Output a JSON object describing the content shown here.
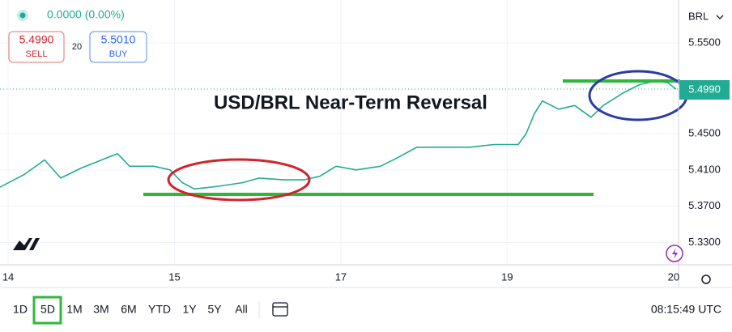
{
  "header": {
    "change": "0.0000 (0.00%)",
    "sell_price": "5.4990",
    "sell": "SELL",
    "spread": "20",
    "buy_price": "5.5010",
    "buy": "BUY",
    "currency": "BRL"
  },
  "chart_data": {
    "type": "line",
    "title": "USD/BRL Near-Term Reversal",
    "color": "#22ab94",
    "x": [
      -0.049,
      0.097,
      0.219,
      0.316,
      0.438,
      0.535,
      0.657,
      0.73,
      0.876,
      0.973,
      1.046,
      1.119,
      1.265,
      1.411,
      1.509,
      1.655,
      1.776,
      1.873,
      1.971,
      2.092,
      2.238,
      2.336,
      2.457,
      2.603,
      2.774,
      2.92,
      3.066,
      3.114,
      3.163,
      3.212,
      3.309,
      3.406,
      3.504,
      3.577,
      3.698,
      3.796,
      3.893,
      3.966,
      4.015
    ],
    "values": [
      5.391,
      5.405,
      5.421,
      5.401,
      5.412,
      5.419,
      5.428,
      5.414,
      5.414,
      5.41,
      5.396,
      5.389,
      5.392,
      5.396,
      5.401,
      5.399,
      5.399,
      5.403,
      5.414,
      5.41,
      5.414,
      5.423,
      5.435,
      5.435,
      5.435,
      5.438,
      5.438,
      5.45,
      5.472,
      5.486,
      5.477,
      5.481,
      5.468,
      5.481,
      5.495,
      5.504,
      5.508,
      5.506,
      5.499
    ],
    "xlim": [
      -0.049,
      4.03
    ],
    "ylim": [
      5.3054,
      5.5973
    ],
    "xticks": [
      {
        "value": 0,
        "label": "14"
      },
      {
        "value": 1,
        "label": "15"
      },
      {
        "value": 2,
        "label": "17"
      },
      {
        "value": 3,
        "label": "19"
      },
      {
        "value": 4,
        "label": "20"
      }
    ],
    "yticks": [
      {
        "value": 5.55,
        "label": "5.5500"
      },
      {
        "value": 5.45,
        "label": "5.4500"
      },
      {
        "value": 5.41,
        "label": "5.4100"
      },
      {
        "value": 5.37,
        "label": "5.3700"
      },
      {
        "value": 5.33,
        "label": "5.3300"
      }
    ],
    "last_price_label": "5.4990",
    "grid": true
  },
  "toolbar": {
    "ranges": [
      "1D",
      "5D",
      "1M",
      "3M",
      "6M",
      "YTD",
      "1Y",
      "5Y",
      "All"
    ],
    "time": "08:15:49 UTC"
  }
}
